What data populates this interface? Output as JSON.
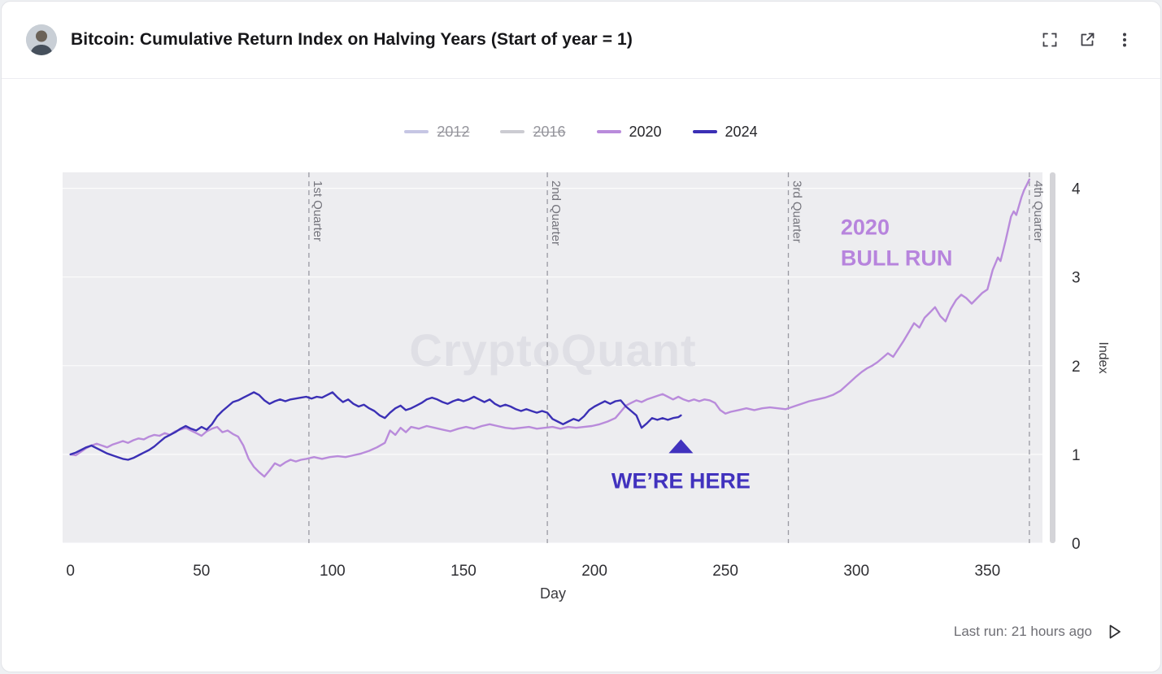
{
  "header": {
    "title": "Bitcoin: Cumulative Return Index on Halving Years (Start of year = 1)",
    "icons": [
      "fullscreen-icon",
      "open-external-icon",
      "more-menu-icon"
    ]
  },
  "watermark": {
    "text": "CryptoQuant",
    "color": "#dfdfe5"
  },
  "legend": [
    {
      "label": "2012",
      "color": "#c6c6e4",
      "disabled": true
    },
    {
      "label": "2016",
      "color": "#ccccd2",
      "disabled": true
    },
    {
      "label": "2020",
      "color": "#b98bdb",
      "disabled": false
    },
    {
      "label": "2024",
      "color": "#3b30b5",
      "disabled": false
    }
  ],
  "footer": {
    "last_run": "Last run: 21 hours ago",
    "icon": "play-icon"
  },
  "chart_data": {
    "type": "line",
    "title": "Bitcoin: Cumulative Return Index on Halving Years (Start of year = 1)",
    "xlabel": "Day",
    "ylabel": "Index",
    "xlim": [
      -3,
      371
    ],
    "ylim": [
      0,
      4.18
    ],
    "x_ticks": [
      0,
      50,
      100,
      150,
      200,
      250,
      300,
      350
    ],
    "y_ticks": [
      0,
      1,
      2,
      3,
      4
    ],
    "plot_bg": "#ededf0",
    "grid": true,
    "legend_position": "top",
    "quarter_lines": [
      {
        "day": 91,
        "label": "1st Quarter"
      },
      {
        "day": 182,
        "label": "2nd Quarter"
      },
      {
        "day": 274,
        "label": "3rd Quarter"
      },
      {
        "day": 366,
        "label": "4th Quarter"
      }
    ],
    "annotations": [
      {
        "id": "bull-run",
        "lines": [
          "2020",
          "BULL RUN"
        ],
        "color": "#b784dd",
        "day": 294,
        "value": 3.48,
        "align": "start"
      },
      {
        "id": "were-here",
        "lines": [
          "WE’RE HERE"
        ],
        "color": "#4132be",
        "day": 233,
        "value": 0.62,
        "align": "middle",
        "marker": "triangle-up",
        "marker_value": 1.17
      }
    ],
    "series": [
      {
        "name": "2012",
        "color": "#c6c6e4",
        "visible": false,
        "points": []
      },
      {
        "name": "2016",
        "color": "#ccccd2",
        "visible": false,
        "points": []
      },
      {
        "name": "2020",
        "color": "#b98bdb",
        "visible": true,
        "points": [
          [
            0,
            1.0
          ],
          [
            2,
            0.99
          ],
          [
            4,
            1.03
          ],
          [
            6,
            1.07
          ],
          [
            8,
            1.1
          ],
          [
            10,
            1.12
          ],
          [
            12,
            1.1
          ],
          [
            14,
            1.08
          ],
          [
            16,
            1.11
          ],
          [
            18,
            1.13
          ],
          [
            20,
            1.15
          ],
          [
            22,
            1.13
          ],
          [
            24,
            1.16
          ],
          [
            26,
            1.18
          ],
          [
            28,
            1.17
          ],
          [
            30,
            1.2
          ],
          [
            32,
            1.22
          ],
          [
            34,
            1.21
          ],
          [
            36,
            1.24
          ],
          [
            38,
            1.22
          ],
          [
            40,
            1.26
          ],
          [
            42,
            1.28
          ],
          [
            44,
            1.3
          ],
          [
            46,
            1.27
          ],
          [
            48,
            1.24
          ],
          [
            50,
            1.21
          ],
          [
            52,
            1.26
          ],
          [
            54,
            1.29
          ],
          [
            56,
            1.31
          ],
          [
            58,
            1.25
          ],
          [
            60,
            1.27
          ],
          [
            62,
            1.23
          ],
          [
            64,
            1.2
          ],
          [
            66,
            1.1
          ],
          [
            68,
            0.95
          ],
          [
            70,
            0.86
          ],
          [
            72,
            0.8
          ],
          [
            74,
            0.75
          ],
          [
            76,
            0.82
          ],
          [
            78,
            0.9
          ],
          [
            80,
            0.87
          ],
          [
            82,
            0.91
          ],
          [
            84,
            0.94
          ],
          [
            86,
            0.92
          ],
          [
            88,
            0.94
          ],
          [
            90,
            0.95
          ],
          [
            93,
            0.97
          ],
          [
            96,
            0.95
          ],
          [
            99,
            0.97
          ],
          [
            102,
            0.98
          ],
          [
            105,
            0.97
          ],
          [
            108,
            0.99
          ],
          [
            111,
            1.01
          ],
          [
            114,
            1.04
          ],
          [
            117,
            1.08
          ],
          [
            120,
            1.13
          ],
          [
            122,
            1.27
          ],
          [
            124,
            1.22
          ],
          [
            126,
            1.3
          ],
          [
            128,
            1.25
          ],
          [
            130,
            1.31
          ],
          [
            133,
            1.29
          ],
          [
            136,
            1.32
          ],
          [
            139,
            1.3
          ],
          [
            142,
            1.28
          ],
          [
            145,
            1.26
          ],
          [
            148,
            1.29
          ],
          [
            151,
            1.31
          ],
          [
            154,
            1.29
          ],
          [
            157,
            1.32
          ],
          [
            160,
            1.34
          ],
          [
            163,
            1.32
          ],
          [
            166,
            1.3
          ],
          [
            169,
            1.29
          ],
          [
            172,
            1.3
          ],
          [
            175,
            1.31
          ],
          [
            178,
            1.29
          ],
          [
            181,
            1.3
          ],
          [
            184,
            1.31
          ],
          [
            187,
            1.29
          ],
          [
            190,
            1.31
          ],
          [
            193,
            1.3
          ],
          [
            196,
            1.31
          ],
          [
            199,
            1.32
          ],
          [
            202,
            1.34
          ],
          [
            205,
            1.37
          ],
          [
            208,
            1.41
          ],
          [
            210,
            1.48
          ],
          [
            212,
            1.55
          ],
          [
            214,
            1.58
          ],
          [
            216,
            1.61
          ],
          [
            218,
            1.59
          ],
          [
            220,
            1.62
          ],
          [
            222,
            1.64
          ],
          [
            224,
            1.66
          ],
          [
            226,
            1.68
          ],
          [
            228,
            1.65
          ],
          [
            230,
            1.62
          ],
          [
            232,
            1.65
          ],
          [
            234,
            1.62
          ],
          [
            236,
            1.6
          ],
          [
            238,
            1.62
          ],
          [
            240,
            1.6
          ],
          [
            242,
            1.62
          ],
          [
            244,
            1.61
          ],
          [
            246,
            1.58
          ],
          [
            248,
            1.5
          ],
          [
            250,
            1.46
          ],
          [
            252,
            1.48
          ],
          [
            255,
            1.5
          ],
          [
            258,
            1.52
          ],
          [
            261,
            1.5
          ],
          [
            264,
            1.52
          ],
          [
            267,
            1.53
          ],
          [
            270,
            1.52
          ],
          [
            273,
            1.51
          ],
          [
            276,
            1.54
          ],
          [
            279,
            1.57
          ],
          [
            282,
            1.6
          ],
          [
            285,
            1.62
          ],
          [
            288,
            1.64
          ],
          [
            291,
            1.67
          ],
          [
            294,
            1.72
          ],
          [
            297,
            1.8
          ],
          [
            300,
            1.88
          ],
          [
            302,
            1.93
          ],
          [
            304,
            1.97
          ],
          [
            306,
            2.0
          ],
          [
            308,
            2.04
          ],
          [
            310,
            2.09
          ],
          [
            312,
            2.14
          ],
          [
            314,
            2.1
          ],
          [
            316,
            2.19
          ],
          [
            318,
            2.28
          ],
          [
            320,
            2.38
          ],
          [
            322,
            2.48
          ],
          [
            324,
            2.43
          ],
          [
            326,
            2.54
          ],
          [
            328,
            2.6
          ],
          [
            330,
            2.66
          ],
          [
            332,
            2.56
          ],
          [
            334,
            2.5
          ],
          [
            336,
            2.64
          ],
          [
            338,
            2.74
          ],
          [
            340,
            2.8
          ],
          [
            342,
            2.76
          ],
          [
            344,
            2.7
          ],
          [
            346,
            2.76
          ],
          [
            348,
            2.82
          ],
          [
            350,
            2.86
          ],
          [
            352,
            3.08
          ],
          [
            354,
            3.22
          ],
          [
            355,
            3.18
          ],
          [
            356,
            3.3
          ],
          [
            357,
            3.42
          ],
          [
            358,
            3.55
          ],
          [
            359,
            3.68
          ],
          [
            360,
            3.74
          ],
          [
            361,
            3.7
          ],
          [
            362,
            3.8
          ],
          [
            363,
            3.9
          ],
          [
            364,
            3.98
          ],
          [
            365,
            4.04
          ],
          [
            366,
            4.1
          ]
        ]
      },
      {
        "name": "2024",
        "color": "#3b30b5",
        "visible": true,
        "points": [
          [
            0,
            1.0
          ],
          [
            2,
            1.02
          ],
          [
            4,
            1.05
          ],
          [
            6,
            1.08
          ],
          [
            8,
            1.1
          ],
          [
            10,
            1.07
          ],
          [
            12,
            1.04
          ],
          [
            14,
            1.01
          ],
          [
            16,
            0.99
          ],
          [
            18,
            0.97
          ],
          [
            20,
            0.95
          ],
          [
            22,
            0.94
          ],
          [
            24,
            0.96
          ],
          [
            26,
            0.99
          ],
          [
            28,
            1.02
          ],
          [
            30,
            1.05
          ],
          [
            32,
            1.09
          ],
          [
            34,
            1.14
          ],
          [
            36,
            1.19
          ],
          [
            38,
            1.22
          ],
          [
            40,
            1.25
          ],
          [
            42,
            1.29
          ],
          [
            44,
            1.32
          ],
          [
            46,
            1.29
          ],
          [
            48,
            1.27
          ],
          [
            50,
            1.31
          ],
          [
            52,
            1.28
          ],
          [
            54,
            1.34
          ],
          [
            56,
            1.43
          ],
          [
            58,
            1.49
          ],
          [
            60,
            1.54
          ],
          [
            62,
            1.59
          ],
          [
            64,
            1.61
          ],
          [
            66,
            1.64
          ],
          [
            68,
            1.67
          ],
          [
            70,
            1.7
          ],
          [
            72,
            1.67
          ],
          [
            74,
            1.61
          ],
          [
            76,
            1.57
          ],
          [
            78,
            1.6
          ],
          [
            80,
            1.62
          ],
          [
            82,
            1.6
          ],
          [
            84,
            1.62
          ],
          [
            86,
            1.63
          ],
          [
            88,
            1.64
          ],
          [
            90,
            1.65
          ],
          [
            92,
            1.63
          ],
          [
            94,
            1.65
          ],
          [
            96,
            1.64
          ],
          [
            98,
            1.67
          ],
          [
            100,
            1.7
          ],
          [
            102,
            1.64
          ],
          [
            104,
            1.59
          ],
          [
            106,
            1.62
          ],
          [
            108,
            1.57
          ],
          [
            110,
            1.54
          ],
          [
            112,
            1.56
          ],
          [
            114,
            1.52
          ],
          [
            116,
            1.49
          ],
          [
            118,
            1.44
          ],
          [
            120,
            1.41
          ],
          [
            122,
            1.47
          ],
          [
            124,
            1.52
          ],
          [
            126,
            1.55
          ],
          [
            128,
            1.5
          ],
          [
            130,
            1.52
          ],
          [
            132,
            1.55
          ],
          [
            134,
            1.58
          ],
          [
            136,
            1.62
          ],
          [
            138,
            1.64
          ],
          [
            140,
            1.62
          ],
          [
            142,
            1.59
          ],
          [
            144,
            1.57
          ],
          [
            146,
            1.6
          ],
          [
            148,
            1.62
          ],
          [
            150,
            1.6
          ],
          [
            152,
            1.62
          ],
          [
            154,
            1.65
          ],
          [
            156,
            1.62
          ],
          [
            158,
            1.59
          ],
          [
            160,
            1.62
          ],
          [
            162,
            1.57
          ],
          [
            164,
            1.54
          ],
          [
            166,
            1.56
          ],
          [
            168,
            1.54
          ],
          [
            170,
            1.51
          ],
          [
            172,
            1.49
          ],
          [
            174,
            1.51
          ],
          [
            176,
            1.49
          ],
          [
            178,
            1.47
          ],
          [
            180,
            1.49
          ],
          [
            182,
            1.47
          ],
          [
            184,
            1.4
          ],
          [
            186,
            1.37
          ],
          [
            188,
            1.34
          ],
          [
            190,
            1.37
          ],
          [
            192,
            1.4
          ],
          [
            194,
            1.38
          ],
          [
            196,
            1.43
          ],
          [
            198,
            1.5
          ],
          [
            200,
            1.54
          ],
          [
            202,
            1.57
          ],
          [
            204,
            1.6
          ],
          [
            206,
            1.57
          ],
          [
            208,
            1.6
          ],
          [
            210,
            1.61
          ],
          [
            212,
            1.54
          ],
          [
            214,
            1.49
          ],
          [
            216,
            1.44
          ],
          [
            218,
            1.3
          ],
          [
            220,
            1.35
          ],
          [
            222,
            1.41
          ],
          [
            224,
            1.39
          ],
          [
            226,
            1.41
          ],
          [
            228,
            1.39
          ],
          [
            230,
            1.41
          ],
          [
            232,
            1.42
          ],
          [
            233,
            1.44
          ]
        ]
      }
    ]
  }
}
